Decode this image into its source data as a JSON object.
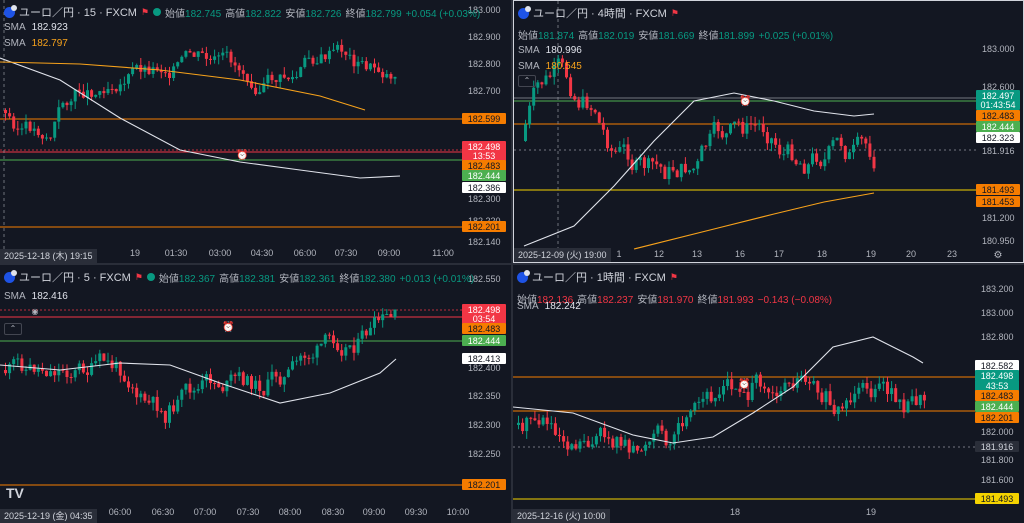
{
  "panes": [
    {
      "id": "tl",
      "title": "ユーロ／円 · 15 · FXCM",
      "ohlc": [
        {
          "label": "始値",
          "value": "182.745",
          "cls": "up"
        },
        {
          "label": "高値",
          "value": "182.822",
          "cls": "up"
        },
        {
          "label": "安値",
          "value": "182.726",
          "cls": "up"
        },
        {
          "label": "終値",
          "value": "182.799",
          "cls": "up"
        }
      ],
      "change": "+0.054 (+0.03%)",
      "change_cls": "up",
      "sma": [
        {
          "label": "SMA",
          "value": "182.923"
        },
        {
          "label": "SMA",
          "value": "182.797"
        }
      ],
      "footer_date": "2025-12-18 (木)  19:15",
      "x_ticks": [
        "19",
        "01:30",
        "03:00",
        "04:30",
        "06:00",
        "07:30",
        "09:00",
        "11:00"
      ],
      "y_ticks": [
        "183.000",
        "182.900",
        "182.800",
        "182.700",
        "182.599",
        "182.300",
        "182.220",
        "182.140"
      ],
      "badges": [
        {
          "text": "182.599",
          "bg": "#f57c00",
          "fg": "#131722"
        },
        {
          "text": "182.498",
          "bg": "#f23645",
          "fg": "#ffffff"
        },
        {
          "text": "13:53",
          "bg": "#f23645",
          "fg": "#ffffff"
        },
        {
          "text": "182.483",
          "bg": "#f57c00",
          "fg": "#131722"
        },
        {
          "text": "182.444",
          "bg": "#4caf50",
          "fg": "#ffffff"
        },
        {
          "text": "182.386",
          "bg": "#ffffff",
          "fg": "#131722"
        },
        {
          "text": "182.201",
          "bg": "#f57c00",
          "fg": "#131722"
        }
      ]
    },
    {
      "id": "tr",
      "title": "ユーロ／円 · 4時間 · FXCM",
      "ohlc": [
        {
          "label": "始値",
          "value": "181.874",
          "cls": "up"
        },
        {
          "label": "高値",
          "value": "182.019",
          "cls": "up"
        },
        {
          "label": "安値",
          "value": "181.669",
          "cls": "up"
        },
        {
          "label": "終値",
          "value": "181.899",
          "cls": "up"
        }
      ],
      "change": "+0.025 (+0.01%)",
      "change_cls": "up",
      "sma": [
        {
          "label": "SMA",
          "value": "180.996"
        },
        {
          "label": "SMA",
          "value": "180.545"
        }
      ],
      "footer_date": "2025-12-09 (火)  19:00",
      "x_ticks": [
        "1",
        "12",
        "13",
        "16",
        "17",
        "18",
        "19",
        "20",
        "23"
      ],
      "y_ticks": [
        "183.000",
        "182.600",
        "182.323",
        "181.916",
        "181.493",
        "181.200",
        "180.950"
      ],
      "badges": [
        {
          "text": "182.497",
          "bg": "#089981",
          "fg": "#ffffff"
        },
        {
          "text": "01:43:54",
          "bg": "#089981",
          "fg": "#ffffff"
        },
        {
          "text": "182.483",
          "bg": "#f57c00",
          "fg": "#131722"
        },
        {
          "text": "182.444",
          "bg": "#4caf50",
          "fg": "#ffffff"
        },
        {
          "text": "182.323",
          "bg": "#ffffff",
          "fg": "#131722"
        },
        {
          "text": "181.493",
          "bg": "#f57c00",
          "fg": "#131722"
        },
        {
          "text": "181.453",
          "bg": "#f57c00",
          "fg": "#131722"
        }
      ]
    },
    {
      "id": "bl",
      "title": "ユーロ／円 · 5 · FXCM",
      "ohlc": [
        {
          "label": "始値",
          "value": "182.367",
          "cls": "up"
        },
        {
          "label": "高値",
          "value": "182.381",
          "cls": "up"
        },
        {
          "label": "安値",
          "value": "182.361",
          "cls": "up"
        },
        {
          "label": "終値",
          "value": "182.380",
          "cls": "up"
        }
      ],
      "change": "+0.013 (+0.01%)",
      "change_cls": "up",
      "sma": [
        {
          "label": "SMA",
          "value": "182.416"
        }
      ],
      "footer_date": "2025-12-19 (金)  04:35",
      "x_ticks": [
        "06:00",
        "06:30",
        "07:00",
        "07:30",
        "08:00",
        "08:30",
        "09:00",
        "09:30",
        "10:00"
      ],
      "y_ticks": [
        "182.550",
        "182.400",
        "182.350",
        "182.300",
        "182.250",
        "182.200"
      ],
      "badges": [
        {
          "text": "182.498",
          "bg": "#f23645",
          "fg": "#ffffff"
        },
        {
          "text": "03:54",
          "bg": "#f23645",
          "fg": "#ffffff"
        },
        {
          "text": "182.483",
          "bg": "#f57c00",
          "fg": "#131722"
        },
        {
          "text": "182.444",
          "bg": "#4caf50",
          "fg": "#ffffff"
        },
        {
          "text": "182.413",
          "bg": "#ffffff",
          "fg": "#131722"
        },
        {
          "text": "182.201",
          "bg": "#f57c00",
          "fg": "#131722"
        }
      ]
    },
    {
      "id": "br",
      "title": "ユーロ／円 · 1時間 · FXCM",
      "ohlc": [
        {
          "label": "始値",
          "value": "182.136",
          "cls": "dn"
        },
        {
          "label": "高値",
          "value": "182.237",
          "cls": "dn"
        },
        {
          "label": "安値",
          "value": "181.970",
          "cls": "dn"
        },
        {
          "label": "終値",
          "value": "181.993",
          "cls": "dn"
        }
      ],
      "change": "−0.143 (−0.08%)",
      "change_cls": "dn",
      "sma": [
        {
          "label": "SMA",
          "value": "182.242"
        }
      ],
      "footer_date": "2025-12-16 (火)  10:00",
      "x_ticks": [
        "18",
        "19"
      ],
      "y_ticks": [
        "183.200",
        "183.000",
        "182.800",
        "182.582",
        "182.000",
        "181.916",
        "181.800",
        "181.600",
        "181.440"
      ],
      "badges": [
        {
          "text": "182.582",
          "bg": "#ffffff",
          "fg": "#131722"
        },
        {
          "text": "182.498",
          "bg": "#089981",
          "fg": "#ffffff"
        },
        {
          "text": "43:53",
          "bg": "#089981",
          "fg": "#ffffff"
        },
        {
          "text": "182.483",
          "bg": "#f57c00",
          "fg": "#131722"
        },
        {
          "text": "182.444",
          "bg": "#4caf50",
          "fg": "#ffffff"
        },
        {
          "text": "182.201",
          "bg": "#f57c00",
          "fg": "#131722"
        },
        {
          "text": "181.916",
          "bg": "#2a2e39",
          "fg": "#d1d4dc"
        },
        {
          "text": "181.493",
          "bg": "#f5d300",
          "fg": "#131722"
        }
      ]
    }
  ],
  "logo_text": "TV",
  "colors": {
    "bg": "#131722",
    "up": "#089981",
    "down": "#f23645",
    "sma_fast": "#e0e3eb",
    "sma_slow": "#f7a21b",
    "orange_line": "#f57c00",
    "green_line": "#4caf50",
    "red_line": "#f23645",
    "yellow_line": "#f5d300"
  },
  "icons": [
    "chart-symbol-icon",
    "flag-icon",
    "status-dot-icon",
    "alarm-clock-icon",
    "settings-icon",
    "collapse-icon",
    "eye-icon",
    "tradingview-logo-icon"
  ]
}
